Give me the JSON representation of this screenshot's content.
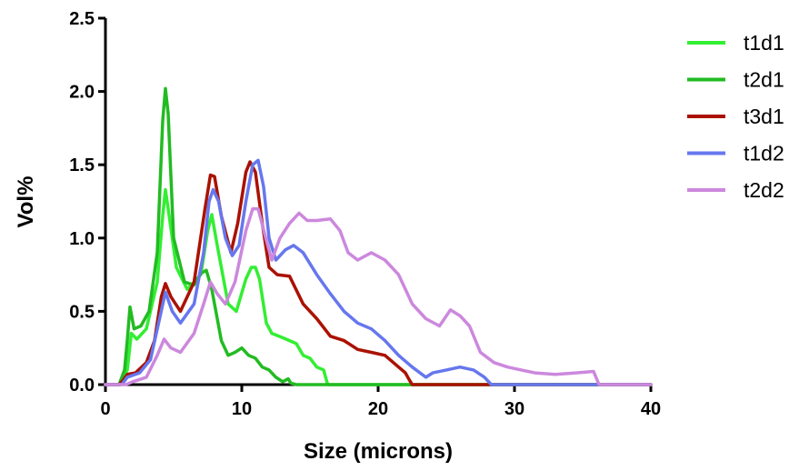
{
  "chart_data": {
    "type": "line",
    "title": "",
    "xlabel": "Size (microns)",
    "ylabel": "Vol%",
    "xlim": [
      0,
      40
    ],
    "ylim": [
      0,
      2.5
    ],
    "xticks": [
      0,
      10,
      20,
      30,
      40
    ],
    "xtick_labels": [
      "0",
      "10",
      "20",
      "30",
      "40"
    ],
    "yticks": [
      0,
      0.5,
      1.0,
      1.5,
      2.0,
      2.5
    ],
    "ytick_labels": [
      "0.0",
      "0.5",
      "1.0",
      "1.5",
      "2.0",
      "2.5"
    ],
    "grid": false,
    "legend_position": "top-right",
    "series": [
      {
        "name": "t1d1",
        "color": "#33ee33",
        "points": [
          [
            0,
            0
          ],
          [
            1,
            0
          ],
          [
            1.6,
            0.1
          ],
          [
            1.9,
            0.35
          ],
          [
            2.3,
            0.31
          ],
          [
            3,
            0.38
          ],
          [
            3.8,
            0.7
          ],
          [
            4.2,
            1.15
          ],
          [
            4.4,
            1.33
          ],
          [
            4.6,
            1.2
          ],
          [
            5.2,
            0.8
          ],
          [
            6,
            0.65
          ],
          [
            7,
            0.75
          ],
          [
            7.5,
            1.05
          ],
          [
            7.8,
            1.16
          ],
          [
            8.2,
            0.95
          ],
          [
            9,
            0.55
          ],
          [
            9.6,
            0.5
          ],
          [
            10.3,
            0.72
          ],
          [
            10.7,
            0.8
          ],
          [
            11,
            0.8
          ],
          [
            11.3,
            0.72
          ],
          [
            11.8,
            0.42
          ],
          [
            12.2,
            0.35
          ],
          [
            13,
            0.32
          ],
          [
            13.5,
            0.3
          ],
          [
            14,
            0.28
          ],
          [
            14.5,
            0.2
          ],
          [
            15,
            0.18
          ],
          [
            15.5,
            0.12
          ],
          [
            16,
            0.1
          ],
          [
            16.3,
            0
          ],
          [
            40,
            0
          ]
        ]
      },
      {
        "name": "t2d1",
        "color": "#22bb22",
        "points": [
          [
            0,
            0
          ],
          [
            1,
            0
          ],
          [
            1.4,
            0.1
          ],
          [
            1.6,
            0.3
          ],
          [
            1.8,
            0.53
          ],
          [
            2.1,
            0.38
          ],
          [
            2.6,
            0.4
          ],
          [
            3.2,
            0.5
          ],
          [
            3.8,
            0.9
          ],
          [
            4.2,
            1.8
          ],
          [
            4.4,
            2.02
          ],
          [
            4.6,
            1.85
          ],
          [
            5,
            1.0
          ],
          [
            5.8,
            0.7
          ],
          [
            6.5,
            0.68
          ],
          [
            7,
            0.76
          ],
          [
            7.4,
            0.78
          ],
          [
            7.8,
            0.65
          ],
          [
            8.5,
            0.3
          ],
          [
            9,
            0.2
          ],
          [
            9.5,
            0.22
          ],
          [
            10,
            0.25
          ],
          [
            10.5,
            0.2
          ],
          [
            11,
            0.18
          ],
          [
            11.5,
            0.12
          ],
          [
            12,
            0.1
          ],
          [
            12.5,
            0.05
          ],
          [
            13,
            0.02
          ],
          [
            13.4,
            0.04
          ],
          [
            13.6,
            0.01
          ],
          [
            14,
            0
          ],
          [
            40,
            0
          ]
        ]
      },
      {
        "name": "t3d1",
        "color": "#aa1100",
        "points": [
          [
            0,
            0
          ],
          [
            1,
            0
          ],
          [
            1.3,
            0.03
          ],
          [
            1.6,
            0.07
          ],
          [
            2.2,
            0.08
          ],
          [
            3,
            0.15
          ],
          [
            3.6,
            0.3
          ],
          [
            4.1,
            0.6
          ],
          [
            4.4,
            0.69
          ],
          [
            4.8,
            0.6
          ],
          [
            5.5,
            0.5
          ],
          [
            6.5,
            0.7
          ],
          [
            7.3,
            1.2
          ],
          [
            7.7,
            1.43
          ],
          [
            8,
            1.42
          ],
          [
            8.5,
            1.15
          ],
          [
            9.2,
            0.9
          ],
          [
            9.7,
            1.1
          ],
          [
            10.3,
            1.45
          ],
          [
            10.6,
            1.52
          ],
          [
            11,
            1.45
          ],
          [
            11.5,
            1.1
          ],
          [
            12,
            0.8
          ],
          [
            12.6,
            0.75
          ],
          [
            13.5,
            0.74
          ],
          [
            14.5,
            0.55
          ],
          [
            15.5,
            0.45
          ],
          [
            16.5,
            0.33
          ],
          [
            17.5,
            0.3
          ],
          [
            18.5,
            0.24
          ],
          [
            19.5,
            0.22
          ],
          [
            20.5,
            0.2
          ],
          [
            21.5,
            0.12
          ],
          [
            22,
            0.08
          ],
          [
            22.3,
            0.03
          ],
          [
            22.5,
            0
          ],
          [
            40,
            0
          ]
        ]
      },
      {
        "name": "t1d2",
        "color": "#6677ee",
        "points": [
          [
            0,
            0
          ],
          [
            1.2,
            0
          ],
          [
            1.6,
            0.05
          ],
          [
            2.5,
            0.08
          ],
          [
            3.3,
            0.17
          ],
          [
            3.9,
            0.42
          ],
          [
            4.4,
            0.63
          ],
          [
            4.9,
            0.5
          ],
          [
            5.5,
            0.42
          ],
          [
            6.5,
            0.55
          ],
          [
            7.2,
            0.9
          ],
          [
            7.6,
            1.25
          ],
          [
            7.9,
            1.33
          ],
          [
            8.3,
            1.25
          ],
          [
            8.8,
            1.0
          ],
          [
            9.3,
            0.88
          ],
          [
            9.8,
            0.95
          ],
          [
            10.3,
            1.25
          ],
          [
            10.8,
            1.5
          ],
          [
            11.2,
            1.53
          ],
          [
            11.6,
            1.35
          ],
          [
            12,
            1.0
          ],
          [
            12.5,
            0.85
          ],
          [
            13.2,
            0.92
          ],
          [
            13.8,
            0.95
          ],
          [
            14.5,
            0.9
          ],
          [
            15.5,
            0.75
          ],
          [
            16.5,
            0.62
          ],
          [
            17.5,
            0.5
          ],
          [
            18.5,
            0.42
          ],
          [
            19.5,
            0.38
          ],
          [
            20.5,
            0.3
          ],
          [
            21.5,
            0.2
          ],
          [
            22.5,
            0.12
          ],
          [
            23.5,
            0.05
          ],
          [
            24,
            0.08
          ],
          [
            25,
            0.1
          ],
          [
            26,
            0.12
          ],
          [
            27,
            0.1
          ],
          [
            27.8,
            0.05
          ],
          [
            28.3,
            0
          ],
          [
            40,
            0
          ]
        ]
      },
      {
        "name": "t2d2",
        "color": "#cc88dd",
        "points": [
          [
            0,
            0
          ],
          [
            1.5,
            0
          ],
          [
            2,
            0.02
          ],
          [
            3,
            0.05
          ],
          [
            3.8,
            0.2
          ],
          [
            4.3,
            0.31
          ],
          [
            4.8,
            0.25
          ],
          [
            5.5,
            0.22
          ],
          [
            6.5,
            0.35
          ],
          [
            7.2,
            0.55
          ],
          [
            7.7,
            0.7
          ],
          [
            8.2,
            0.62
          ],
          [
            8.8,
            0.55
          ],
          [
            9.5,
            0.7
          ],
          [
            10.3,
            1.05
          ],
          [
            10.8,
            1.2
          ],
          [
            11.2,
            1.2
          ],
          [
            11.7,
            1.02
          ],
          [
            12.2,
            0.85
          ],
          [
            12.8,
            1.0
          ],
          [
            13.5,
            1.1
          ],
          [
            14.2,
            1.17
          ],
          [
            14.8,
            1.12
          ],
          [
            15.5,
            1.12
          ],
          [
            16.5,
            1.13
          ],
          [
            17.2,
            1.05
          ],
          [
            17.8,
            0.9
          ],
          [
            18.5,
            0.85
          ],
          [
            19.5,
            0.9
          ],
          [
            20.5,
            0.85
          ],
          [
            21.5,
            0.75
          ],
          [
            22.5,
            0.55
          ],
          [
            23.5,
            0.45
          ],
          [
            24.5,
            0.4
          ],
          [
            25.3,
            0.51
          ],
          [
            26,
            0.47
          ],
          [
            26.7,
            0.4
          ],
          [
            27.5,
            0.22
          ],
          [
            28.5,
            0.15
          ],
          [
            29.5,
            0.12
          ],
          [
            30.5,
            0.1
          ],
          [
            31.5,
            0.08
          ],
          [
            33,
            0.07
          ],
          [
            34.5,
            0.08
          ],
          [
            35.8,
            0.09
          ],
          [
            36.2,
            0
          ],
          [
            40,
            0
          ]
        ]
      }
    ]
  }
}
